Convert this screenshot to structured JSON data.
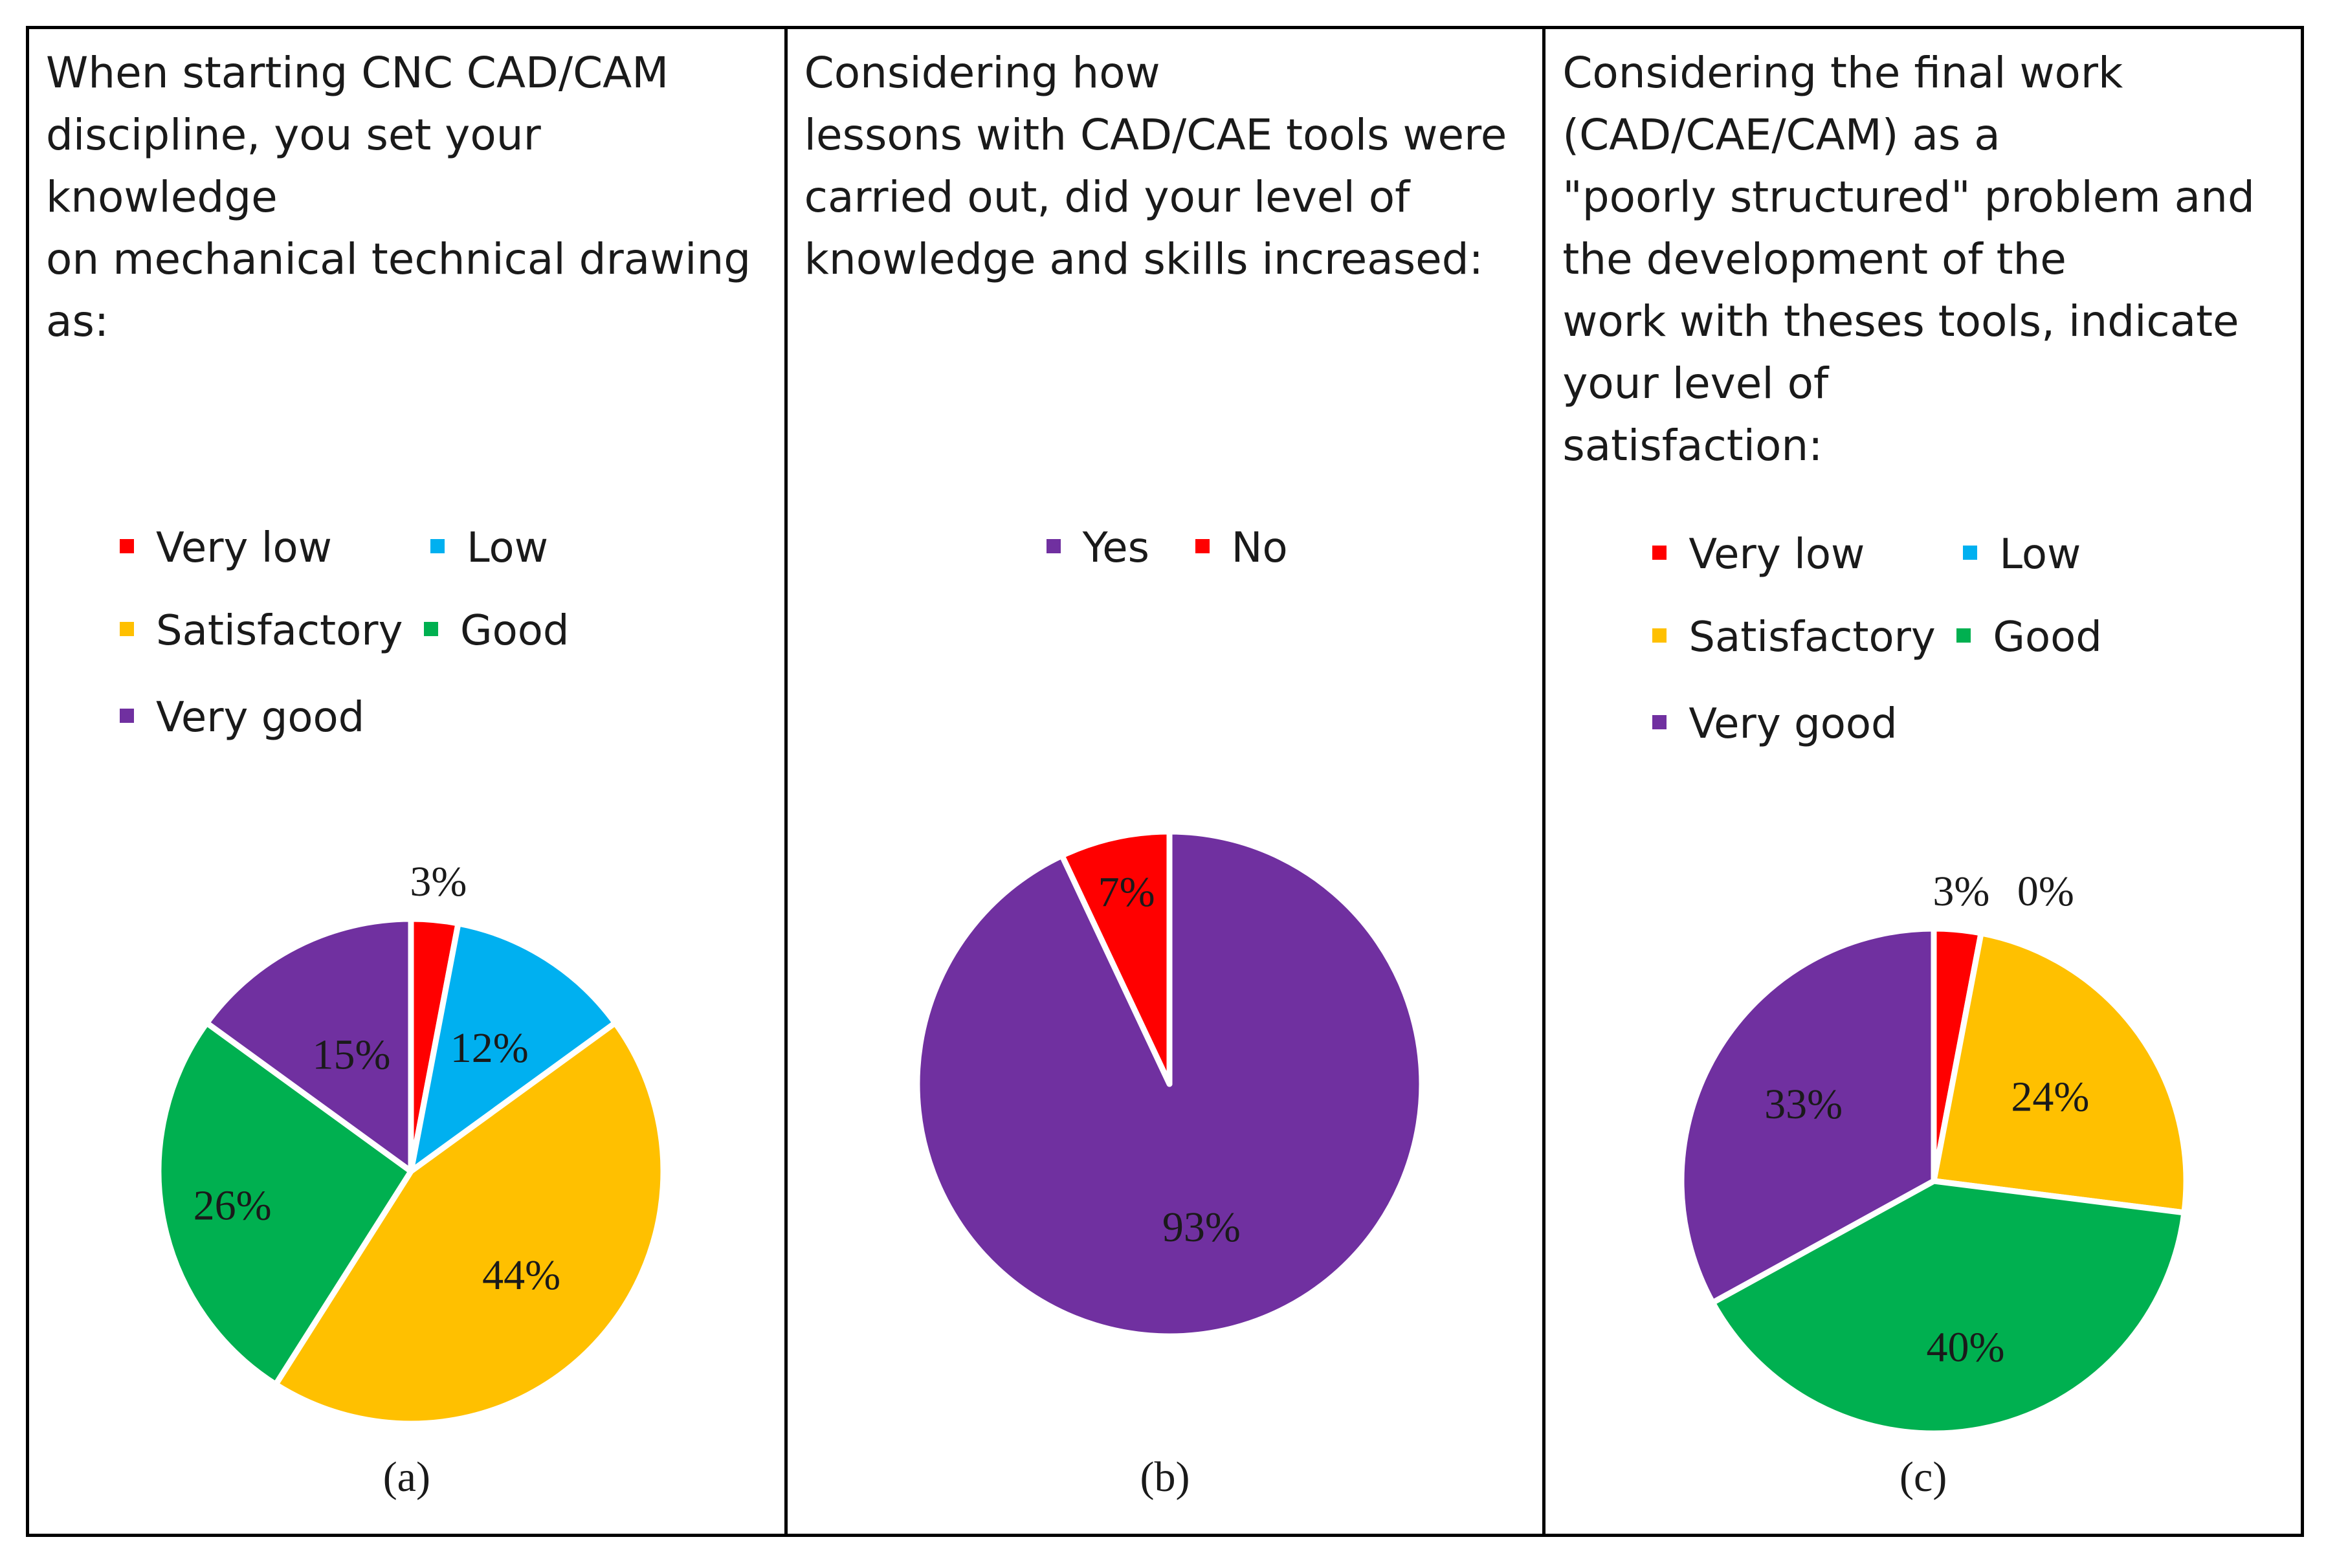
{
  "colors": {
    "very_low": "#ff0000",
    "low": "#00b0f0",
    "satisfactory": "#ffc000",
    "good": "#00b050",
    "very_good": "#7030a0",
    "yes": "#7030a0",
    "no": "#ff0000"
  },
  "chart_data": [
    {
      "type": "pie",
      "title": "When starting CNC CAD/CAM\ndiscipline, you set your knowledge\non mechanical technical drawing\nas:",
      "caption": "(a)",
      "legend": [
        "Very low",
        "Low",
        "Satisfactory",
        "Good",
        "Very good"
      ],
      "slices": [
        {
          "label": "Very low",
          "value": 3,
          "text": "3%",
          "color": "#ff0000"
        },
        {
          "label": "Low",
          "value": 12,
          "text": "12%",
          "color": "#00b0f0"
        },
        {
          "label": "Satisfactory",
          "value": 44,
          "text": "44%",
          "color": "#ffc000"
        },
        {
          "label": "Good",
          "value": 26,
          "text": "26%",
          "color": "#00b050"
        },
        {
          "label": "Very good",
          "value": 15,
          "text": "15%",
          "color": "#7030a0"
        }
      ]
    },
    {
      "type": "pie",
      "title": "Considering how\nlessons with CAD/CAE tools were\ncarried out, did your level of\nknowledge and skills increased:",
      "caption": "(b)",
      "legend": [
        "Yes",
        "No"
      ],
      "slices": [
        {
          "label": "Yes",
          "value": 93,
          "text": "93%",
          "color": "#7030a0"
        },
        {
          "label": "No",
          "value": 7,
          "text": "7%",
          "color": "#ff0000"
        }
      ]
    },
    {
      "type": "pie",
      "title": "Considering the final work\n(CAD/CAE/CAM) as a\n\"poorly structured\" problem and\nthe development of the\nwork with theses tools, indicate\nyour level of\nsatisfaction:",
      "caption": "(c)",
      "legend": [
        "Very low",
        "Low",
        "Satisfactory",
        "Good",
        "Very good"
      ],
      "slices": [
        {
          "label": "Very low",
          "value": 3,
          "text": "3%",
          "color": "#ff0000"
        },
        {
          "label": "Low",
          "value": 0,
          "text": "0%",
          "color": "#00b0f0"
        },
        {
          "label": "Satisfactory",
          "value": 24,
          "text": "24%",
          "color": "#ffc000"
        },
        {
          "label": "Good",
          "value": 40,
          "text": "40%",
          "color": "#00b050"
        },
        {
          "label": "Very good",
          "value": 33,
          "text": "33%",
          "color": "#7030a0"
        }
      ]
    }
  ]
}
